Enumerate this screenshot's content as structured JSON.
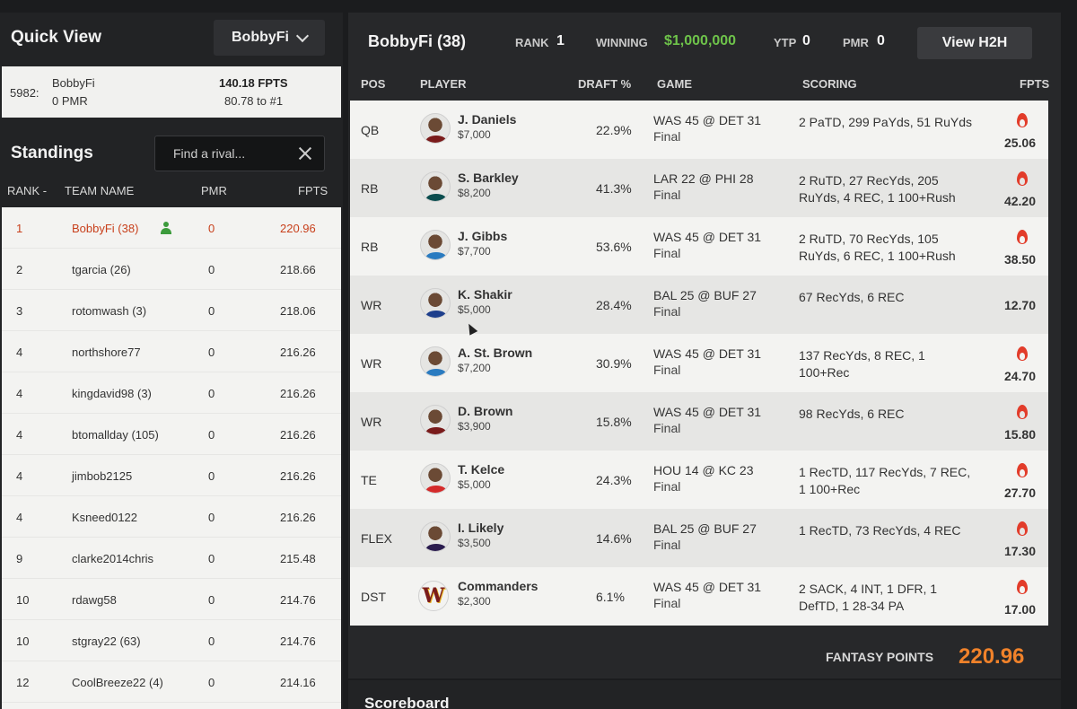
{
  "quick_view": {
    "title": "Quick View",
    "selected_user": "BobbyFi",
    "card": {
      "id": "5982:",
      "name": "BobbyFi",
      "pmr": "0 PMR",
      "fpts": "140.18 FPTS",
      "to_first": "80.78 to #1"
    }
  },
  "standings": {
    "title": "Standings",
    "search_placeholder": "Find a rival...",
    "columns": {
      "rank": "RANK -",
      "team": "TEAM NAME",
      "pmr": "PMR",
      "fpts": "FPTS"
    },
    "rows": [
      {
        "rank": "1",
        "team": "BobbyFi (38)",
        "pmr": "0",
        "fpts": "220.96"
      },
      {
        "rank": "2",
        "team": "tgarcia (26)",
        "pmr": "0",
        "fpts": "218.66"
      },
      {
        "rank": "3",
        "team": "rotomwash (3)",
        "pmr": "0",
        "fpts": "218.06"
      },
      {
        "rank": "4",
        "team": "northshore77",
        "pmr": "0",
        "fpts": "216.26"
      },
      {
        "rank": "4",
        "team": "kingdavid98 (3)",
        "pmr": "0",
        "fpts": "216.26"
      },
      {
        "rank": "4",
        "team": "btomallday (105)",
        "pmr": "0",
        "fpts": "216.26"
      },
      {
        "rank": "4",
        "team": "jimbob2125",
        "pmr": "0",
        "fpts": "216.26"
      },
      {
        "rank": "4",
        "team": "Ksneed0122",
        "pmr": "0",
        "fpts": "216.26"
      },
      {
        "rank": "9",
        "team": "clarke2014chris",
        "pmr": "0",
        "fpts": "215.48"
      },
      {
        "rank": "10",
        "team": "rdawg58",
        "pmr": "0",
        "fpts": "214.76"
      },
      {
        "rank": "10",
        "team": "stgray22 (63)",
        "pmr": "0",
        "fpts": "214.76"
      },
      {
        "rank": "12",
        "team": "CoolBreeze22 (4)",
        "pmr": "0",
        "fpts": "214.16"
      }
    ]
  },
  "lineup": {
    "header": {
      "name": "BobbyFi (38)",
      "rank_label": "RANK",
      "rank_value": "1",
      "winning_label": "WINNING",
      "winning_value": "$1,000,000",
      "ytp_label": "YTP",
      "ytp_value": "0",
      "pmr_label": "PMR",
      "pmr_value": "0",
      "h2h_button": "View H2H"
    },
    "columns": {
      "pos": "POS",
      "player": "PLAYER",
      "draft": "DRAFT %",
      "game": "GAME",
      "scoring": "SCORING",
      "fpts": "FPTS"
    },
    "players": [
      {
        "pos": "QB",
        "name": "J. Daniels",
        "salary": "$7,000",
        "draft": "22.9%",
        "game": "WAS 45 @ DET 31",
        "status": "Final",
        "scoring": "2 PaTD, 299 PaYds, 51 RuYds",
        "fpts": "25.06",
        "hot": true,
        "jersey": "#7a1b1b"
      },
      {
        "pos": "RB",
        "name": "S. Barkley",
        "salary": "$8,200",
        "draft": "41.3%",
        "game": "LAR 22 @ PHI 28",
        "status": "Final",
        "scoring": "2 RuTD, 27 RecYds, 205 RuYds, 4 REC, 1 100+Rush",
        "fpts": "42.20",
        "hot": true,
        "jersey": "#0b4d4e"
      },
      {
        "pos": "RB",
        "name": "J. Gibbs",
        "salary": "$7,700",
        "draft": "53.6%",
        "game": "WAS 45 @ DET 31",
        "status": "Final",
        "scoring": "2 RuTD, 70 RecYds, 105 RuYds, 6 REC, 1 100+Rush",
        "fpts": "38.50",
        "hot": true,
        "jersey": "#2a7bc0"
      },
      {
        "pos": "WR",
        "name": "K. Shakir",
        "salary": "$5,000",
        "draft": "28.4%",
        "game": "BAL 25 @ BUF 27",
        "status": "Final",
        "scoring": "67 RecYds, 6 REC",
        "fpts": "12.70",
        "hot": false,
        "jersey": "#1e3f8c"
      },
      {
        "pos": "WR",
        "name": "A. St. Brown",
        "salary": "$7,200",
        "draft": "30.9%",
        "game": "WAS 45 @ DET 31",
        "status": "Final",
        "scoring": "137 RecYds, 8 REC, 1 100+Rec",
        "fpts": "24.70",
        "hot": true,
        "jersey": "#2a7bc0"
      },
      {
        "pos": "WR",
        "name": "D. Brown",
        "salary": "$3,900",
        "draft": "15.8%",
        "game": "WAS 45 @ DET 31",
        "status": "Final",
        "scoring": "98 RecYds, 6 REC",
        "fpts": "15.80",
        "hot": true,
        "jersey": "#7a1b1b"
      },
      {
        "pos": "TE",
        "name": "T. Kelce",
        "salary": "$5,000",
        "draft": "24.3%",
        "game": "HOU 14 @ KC 23",
        "status": "Final",
        "scoring": "1 RecTD, 117 RecYds, 7 REC, 1 100+Rec",
        "fpts": "27.70",
        "hot": true,
        "jersey": "#d42a2a"
      },
      {
        "pos": "FLEX",
        "name": "I. Likely",
        "salary": "$3,500",
        "draft": "14.6%",
        "game": "BAL 25 @ BUF 27",
        "status": "Final",
        "scoring": "1 RecTD, 73 RecYds, 4 REC",
        "fpts": "17.30",
        "hot": true,
        "jersey": "#2a1c4e"
      },
      {
        "pos": "DST",
        "name": "Commanders",
        "salary": "$2,300",
        "draft": "6.1%",
        "game": "WAS 45 @ DET 31",
        "status": "Final",
        "scoring": "2 SACK, 4 INT, 1 DFR, 1 DefTD, 1 28-34 PA",
        "fpts": "17.00",
        "hot": true,
        "jersey": "#7a1b1b",
        "logo": "W"
      }
    ],
    "fantasy_points_label": "FANTASY POINTS",
    "fantasy_points_value": "220.96"
  },
  "scoreboard": {
    "title": "Scoreboard"
  },
  "colors": {
    "accent_green": "#6ec34a",
    "accent_orange": "#f0822a",
    "hot_red": "#e23c2a"
  }
}
